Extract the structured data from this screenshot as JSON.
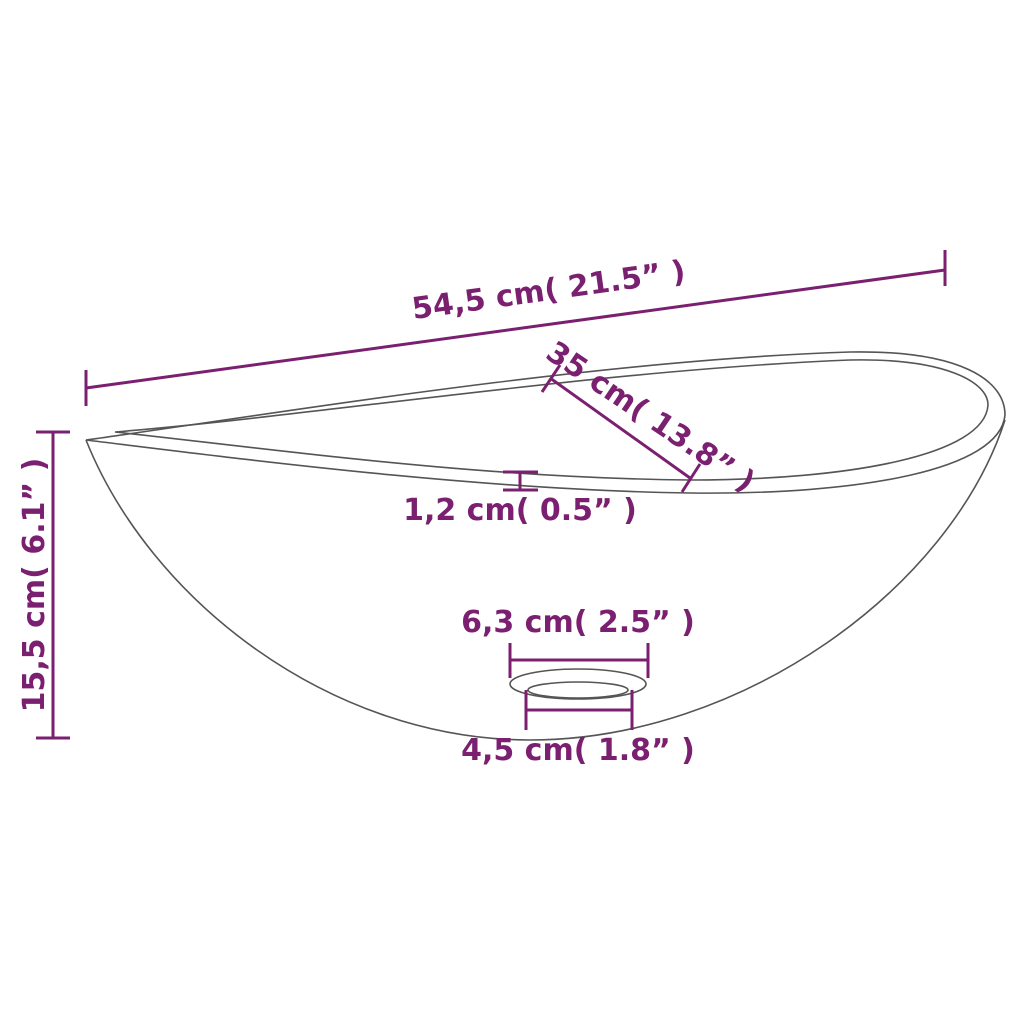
{
  "colors": {
    "dimension": "#7b2070",
    "outline": "#555555"
  },
  "dimensions": {
    "length": "54,5 cm( 21.5”  )",
    "width": "35 cm( 13.8”  )",
    "rim_thickness": "1,2 cm( 0.5”  )",
    "height": "15,5 cm( 6.1”  )",
    "drain_outer": "6,3 cm( 2.5”  )",
    "drain_inner": "4,5 cm( 1.8”  )"
  }
}
